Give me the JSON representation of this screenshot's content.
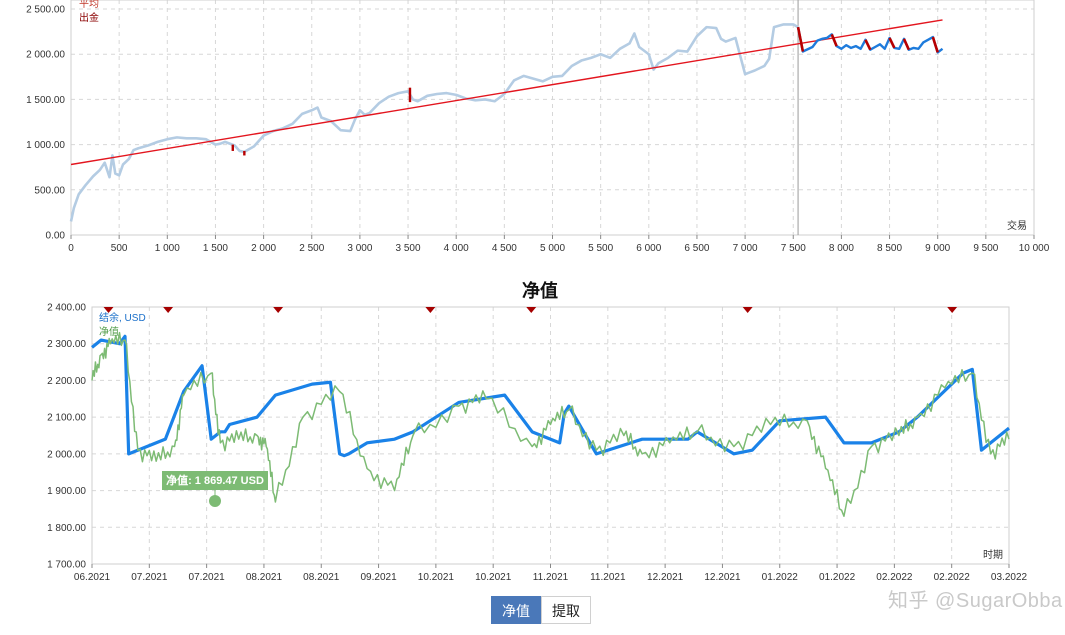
{
  "top_chart": {
    "legend_line1": "平均",
    "legend_line2": "出金",
    "x_axis_label": "交易",
    "colors": {
      "balance": "#b4cce3",
      "trend": "#e3151e",
      "withdraw": "#b80000",
      "forward": "#1e7bdc",
      "grid": "#d7d7d7",
      "divider": "#999999"
    }
  },
  "bottom_chart": {
    "title": "净值",
    "legend_balance": "结余, USD",
    "legend_equity": "净值",
    "tooltip": "净值: 1 869.47 USD",
    "time_label": "时期",
    "colors": {
      "balance": "#1a82e8",
      "equity": "#7dbb74",
      "marker": "#a50000"
    }
  },
  "chart_data": [
    {
      "type": "line",
      "xlabel": "交易",
      "xlim": [
        0,
        10000
      ],
      "ylim": [
        0,
        2600
      ],
      "x_ticks": [
        "0",
        "500",
        "1 000",
        "1 500",
        "2 000",
        "2 500",
        "3 000",
        "3 500",
        "4 000",
        "4 500",
        "5 000",
        "5 500",
        "6 000",
        "6 500",
        "7 000",
        "7 500",
        "8 000",
        "8 500",
        "9 000",
        "9 500",
        "10 000"
      ],
      "y_ticks": [
        "0.00",
        "500.00",
        "1 000.00",
        "1 500.00",
        "2 000.00",
        "2 500.00"
      ],
      "divider_x": 7550,
      "series": [
        {
          "name": "",
          "x": [
            0,
            30,
            80,
            150,
            230,
            300,
            350,
            400,
            430,
            460,
            500,
            540,
            600,
            650,
            700,
            800,
            900,
            1000,
            1100,
            1200,
            1300,
            1400,
            1500,
            1550,
            1600,
            1700,
            1750,
            1800,
            1900,
            2000,
            2100,
            2200,
            2300,
            2400,
            2500,
            2560,
            2600,
            2700,
            2800,
            2900,
            2950,
            3000,
            3050,
            3100,
            3200,
            3300,
            3400,
            3500,
            3550,
            3600,
            3700,
            3800,
            3900,
            4000,
            4100,
            4200,
            4300,
            4400,
            4500,
            4600,
            4700,
            4800,
            4900,
            5000,
            5100,
            5200,
            5300,
            5400,
            5500,
            5600,
            5700,
            5800,
            5850,
            5900,
            6000,
            6050,
            6100,
            6200,
            6300,
            6400,
            6500,
            6600,
            6700,
            6750,
            6800,
            6900,
            6950,
            7000,
            7050,
            7100,
            7200,
            7250,
            7300,
            7400,
            7500,
            7550
          ],
          "y": [
            150,
            300,
            450,
            550,
            650,
            720,
            800,
            640,
            880,
            680,
            660,
            780,
            840,
            940,
            960,
            990,
            1030,
            1060,
            1080,
            1070,
            1070,
            1060,
            1000,
            1010,
            1030,
            990,
            930,
            920,
            980,
            1100,
            1150,
            1180,
            1230,
            1340,
            1380,
            1410,
            1300,
            1260,
            1160,
            1150,
            1280,
            1380,
            1330,
            1350,
            1460,
            1530,
            1570,
            1590,
            1500,
            1480,
            1540,
            1560,
            1570,
            1550,
            1510,
            1490,
            1500,
            1480,
            1560,
            1710,
            1760,
            1730,
            1700,
            1750,
            1760,
            1870,
            1930,
            1960,
            2000,
            1960,
            2060,
            2120,
            2230,
            2080,
            2000,
            1830,
            1900,
            1960,
            2040,
            2030,
            2200,
            2300,
            2290,
            2170,
            2140,
            2180,
            1980,
            1780,
            1800,
            1820,
            1870,
            1950,
            2300,
            2330,
            2330,
            2300
          ]
        },
        {
          "name": "",
          "x": [
            0,
            9050
          ],
          "y": [
            780,
            2380
          ]
        },
        {
          "name": "",
          "x": [
            7550,
            7600,
            7700,
            7750,
            7800,
            7850,
            7900,
            7950,
            8000,
            8050,
            8100,
            8150,
            8200,
            8250,
            8300,
            8350,
            8400,
            8450,
            8500,
            8550,
            8600,
            8650,
            8700,
            8750,
            8800,
            8850,
            8900,
            8950,
            9000,
            9050
          ],
          "y": [
            2300,
            2030,
            2080,
            2150,
            2170,
            2180,
            2220,
            2090,
            2060,
            2100,
            2070,
            2090,
            2060,
            2160,
            2050,
            2080,
            2110,
            2060,
            2180,
            2070,
            2060,
            2170,
            2050,
            2070,
            2060,
            2130,
            2160,
            2190,
            2020,
            2060
          ]
        }
      ]
    },
    {
      "type": "line",
      "title": "净值",
      "ylim": [
        1700,
        2400
      ],
      "x_ticks": [
        "06.2021",
        "07.2021",
        "07.2021",
        "08.2021",
        "08.2021",
        "09.2021",
        "10.2021",
        "10.2021",
        "11.2021",
        "11.2021",
        "12.2021",
        "12.2021",
        "01.2022",
        "01.2022",
        "02.2022",
        "02.2022",
        "03.2022"
      ],
      "y_ticks": [
        "1 700.00",
        "1 800.00",
        "1 900.00",
        "2 000.00",
        "2 100.00",
        "2 200.00",
        "2 300.00",
        "2 400.00"
      ],
      "series": [
        {
          "name": "结余, USD",
          "x": [
            0,
            0.01,
            0.03,
            0.036,
            0.04,
            0.06,
            0.08,
            0.1,
            0.12,
            0.13,
            0.14,
            0.145,
            0.15,
            0.18,
            0.2,
            0.22,
            0.24,
            0.26,
            0.27,
            0.275,
            0.28,
            0.3,
            0.33,
            0.35,
            0.4,
            0.45,
            0.48,
            0.51,
            0.515,
            0.52,
            0.55,
            0.6,
            0.65,
            0.66,
            0.7,
            0.72,
            0.75,
            0.8,
            0.82,
            0.85,
            0.88,
            0.9,
            0.95,
            0.96,
            0.97,
            1.0
          ],
          "y": [
            2290,
            2310,
            2300,
            2320,
            2000,
            2020,
            2040,
            2170,
            2240,
            2040,
            2060,
            2060,
            2080,
            2100,
            2160,
            2175,
            2190,
            2195,
            2000,
            1995,
            2000,
            2030,
            2040,
            2060,
            2140,
            2160,
            2060,
            2030,
            2110,
            2130,
            2000,
            2040,
            2040,
            2060,
            2000,
            2010,
            2090,
            2100,
            2030,
            2030,
            2060,
            2100,
            2220,
            2230,
            2010,
            2070
          ]
        },
        {
          "name": "净值",
          "x": [
            0,
            0.01,
            0.02,
            0.036,
            0.05,
            0.07,
            0.09,
            0.1,
            0.13,
            0.14,
            0.16,
            0.18,
            0.19,
            0.2,
            0.23,
            0.27,
            0.3,
            0.33,
            0.35,
            0.4,
            0.43,
            0.48,
            0.5,
            0.52,
            0.55,
            0.58,
            0.6,
            0.63,
            0.66,
            0.7,
            0.74,
            0.78,
            0.8,
            0.82,
            0.85,
            0.88,
            0.9,
            0.93,
            0.96,
            0.98,
            1.0
          ],
          "y": [
            2200,
            2270,
            2300,
            2310,
            2010,
            1980,
            2020,
            2160,
            2220,
            2030,
            2040,
            2050,
            2020,
            1869,
            2100,
            2170,
            1960,
            1900,
            2050,
            2130,
            2150,
            2020,
            2080,
            2120,
            2010,
            2050,
            2000,
            2030,
            2060,
            2020,
            2080,
            2090,
            1960,
            1830,
            2020,
            2050,
            2100,
            2180,
            2220,
            2000,
            2040
          ]
        }
      ],
      "markers": 8
    }
  ],
  "buttons": {
    "equity": "净值",
    "withdraw": "提取"
  },
  "watermark": "知乎 @SugarObba"
}
